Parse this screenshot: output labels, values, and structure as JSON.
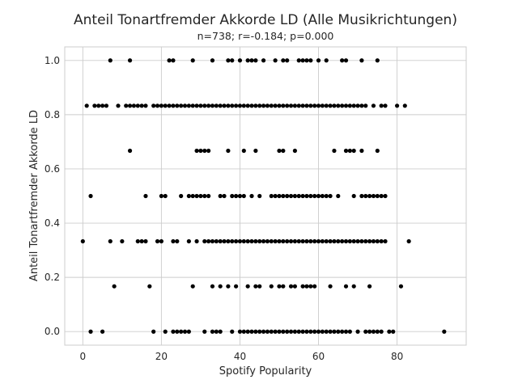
{
  "chart_data": {
    "type": "scatter",
    "title": "Anteil Tonartfremder Akkorde LD (Alle Musikrichtungen)",
    "subtitle": "n=738; r=-0.184; p=0.000",
    "xlabel": "Spotify Popularity",
    "ylabel": "Anteil Tonartfremder Akkorde LD",
    "xlim": [
      -4.6,
      97.6
    ],
    "ylim": [
      -0.05,
      1.05
    ],
    "xticks": [
      0,
      20,
      40,
      60,
      80
    ],
    "yticks": [
      0.0,
      0.2,
      0.4,
      0.6,
      0.8,
      1.0
    ],
    "xtick_labels": [
      "0",
      "20",
      "40",
      "60",
      "80"
    ],
    "ytick_labels": [
      "0.0",
      "0.2",
      "0.4",
      "0.6",
      "0.8",
      "1.0"
    ],
    "grid": true,
    "marker_color": "#000000",
    "series": [
      {
        "points": [
          [
            7,
            1.0
          ],
          [
            12,
            1.0
          ],
          [
            22,
            1.0
          ],
          [
            23,
            1.0
          ],
          [
            28,
            1.0
          ],
          [
            33,
            1.0
          ],
          [
            37,
            1.0
          ],
          [
            38,
            1.0
          ],
          [
            40,
            1.0
          ],
          [
            42,
            1.0
          ],
          [
            43,
            1.0
          ],
          [
            44,
            1.0
          ],
          [
            46,
            1.0
          ],
          [
            49,
            1.0
          ],
          [
            51,
            1.0
          ],
          [
            52,
            1.0
          ],
          [
            55,
            1.0
          ],
          [
            56,
            1.0
          ],
          [
            57,
            1.0
          ],
          [
            58,
            1.0
          ],
          [
            60,
            1.0
          ],
          [
            62,
            1.0
          ],
          [
            66,
            1.0
          ],
          [
            67,
            1.0
          ],
          [
            71,
            1.0
          ],
          [
            75,
            1.0
          ],
          [
            1,
            0.833
          ],
          [
            3,
            0.833
          ],
          [
            4,
            0.833
          ],
          [
            5,
            0.833
          ],
          [
            6,
            0.833
          ],
          [
            9,
            0.833
          ],
          [
            11,
            0.833
          ],
          [
            12,
            0.833
          ],
          [
            13,
            0.833
          ],
          [
            14,
            0.833
          ],
          [
            15,
            0.833
          ],
          [
            16,
            0.833
          ],
          [
            18,
            0.833
          ],
          [
            19,
            0.833
          ],
          [
            20,
            0.833
          ],
          [
            21,
            0.833
          ],
          [
            22,
            0.833
          ],
          [
            23,
            0.833
          ],
          [
            24,
            0.833
          ],
          [
            25,
            0.833
          ],
          [
            26,
            0.833
          ],
          [
            27,
            0.833
          ],
          [
            28,
            0.833
          ],
          [
            29,
            0.833
          ],
          [
            30,
            0.833
          ],
          [
            31,
            0.833
          ],
          [
            32,
            0.833
          ],
          [
            33,
            0.833
          ],
          [
            34,
            0.833
          ],
          [
            35,
            0.833
          ],
          [
            36,
            0.833
          ],
          [
            37,
            0.833
          ],
          [
            38,
            0.833
          ],
          [
            39,
            0.833
          ],
          [
            40,
            0.833
          ],
          [
            41,
            0.833
          ],
          [
            42,
            0.833
          ],
          [
            43,
            0.833
          ],
          [
            44,
            0.833
          ],
          [
            45,
            0.833
          ],
          [
            46,
            0.833
          ],
          [
            47,
            0.833
          ],
          [
            48,
            0.833
          ],
          [
            49,
            0.833
          ],
          [
            50,
            0.833
          ],
          [
            51,
            0.833
          ],
          [
            52,
            0.833
          ],
          [
            53,
            0.833
          ],
          [
            54,
            0.833
          ],
          [
            55,
            0.833
          ],
          [
            56,
            0.833
          ],
          [
            57,
            0.833
          ],
          [
            58,
            0.833
          ],
          [
            59,
            0.833
          ],
          [
            60,
            0.833
          ],
          [
            61,
            0.833
          ],
          [
            62,
            0.833
          ],
          [
            63,
            0.833
          ],
          [
            64,
            0.833
          ],
          [
            65,
            0.833
          ],
          [
            66,
            0.833
          ],
          [
            67,
            0.833
          ],
          [
            68,
            0.833
          ],
          [
            69,
            0.833
          ],
          [
            70,
            0.833
          ],
          [
            71,
            0.833
          ],
          [
            72,
            0.833
          ],
          [
            74,
            0.833
          ],
          [
            76,
            0.833
          ],
          [
            77,
            0.833
          ],
          [
            80,
            0.833
          ],
          [
            82,
            0.833
          ],
          [
            12,
            0.667
          ],
          [
            29,
            0.667
          ],
          [
            30,
            0.667
          ],
          [
            31,
            0.667
          ],
          [
            32,
            0.667
          ],
          [
            37,
            0.667
          ],
          [
            41,
            0.667
          ],
          [
            44,
            0.667
          ],
          [
            50,
            0.667
          ],
          [
            51,
            0.667
          ],
          [
            54,
            0.667
          ],
          [
            64,
            0.667
          ],
          [
            67,
            0.667
          ],
          [
            68,
            0.667
          ],
          [
            69,
            0.667
          ],
          [
            71,
            0.667
          ],
          [
            75,
            0.667
          ],
          [
            2,
            0.5
          ],
          [
            16,
            0.5
          ],
          [
            20,
            0.5
          ],
          [
            21,
            0.5
          ],
          [
            25,
            0.5
          ],
          [
            27,
            0.5
          ],
          [
            28,
            0.5
          ],
          [
            29,
            0.5
          ],
          [
            30,
            0.5
          ],
          [
            31,
            0.5
          ],
          [
            32,
            0.5
          ],
          [
            35,
            0.5
          ],
          [
            36,
            0.5
          ],
          [
            38,
            0.5
          ],
          [
            39,
            0.5
          ],
          [
            40,
            0.5
          ],
          [
            41,
            0.5
          ],
          [
            43,
            0.5
          ],
          [
            45,
            0.5
          ],
          [
            48,
            0.5
          ],
          [
            49,
            0.5
          ],
          [
            50,
            0.5
          ],
          [
            51,
            0.5
          ],
          [
            52,
            0.5
          ],
          [
            53,
            0.5
          ],
          [
            54,
            0.5
          ],
          [
            55,
            0.5
          ],
          [
            56,
            0.5
          ],
          [
            57,
            0.5
          ],
          [
            58,
            0.5
          ],
          [
            59,
            0.5
          ],
          [
            60,
            0.5
          ],
          [
            61,
            0.5
          ],
          [
            62,
            0.5
          ],
          [
            63,
            0.5
          ],
          [
            65,
            0.5
          ],
          [
            69,
            0.5
          ],
          [
            71,
            0.5
          ],
          [
            72,
            0.5
          ],
          [
            73,
            0.5
          ],
          [
            74,
            0.5
          ],
          [
            75,
            0.5
          ],
          [
            76,
            0.5
          ],
          [
            77,
            0.5
          ],
          [
            0,
            0.333
          ],
          [
            7,
            0.333
          ],
          [
            10,
            0.333
          ],
          [
            14,
            0.333
          ],
          [
            15,
            0.333
          ],
          [
            16,
            0.333
          ],
          [
            19,
            0.333
          ],
          [
            20,
            0.333
          ],
          [
            23,
            0.333
          ],
          [
            24,
            0.333
          ],
          [
            27,
            0.333
          ],
          [
            29,
            0.333
          ],
          [
            31,
            0.333
          ],
          [
            32,
            0.333
          ],
          [
            33,
            0.333
          ],
          [
            34,
            0.333
          ],
          [
            35,
            0.333
          ],
          [
            36,
            0.333
          ],
          [
            37,
            0.333
          ],
          [
            38,
            0.333
          ],
          [
            39,
            0.333
          ],
          [
            40,
            0.333
          ],
          [
            41,
            0.333
          ],
          [
            42,
            0.333
          ],
          [
            43,
            0.333
          ],
          [
            44,
            0.333
          ],
          [
            45,
            0.333
          ],
          [
            46,
            0.333
          ],
          [
            47,
            0.333
          ],
          [
            48,
            0.333
          ],
          [
            49,
            0.333
          ],
          [
            50,
            0.333
          ],
          [
            51,
            0.333
          ],
          [
            52,
            0.333
          ],
          [
            53,
            0.333
          ],
          [
            54,
            0.333
          ],
          [
            55,
            0.333
          ],
          [
            56,
            0.333
          ],
          [
            57,
            0.333
          ],
          [
            58,
            0.333
          ],
          [
            59,
            0.333
          ],
          [
            60,
            0.333
          ],
          [
            61,
            0.333
          ],
          [
            62,
            0.333
          ],
          [
            63,
            0.333
          ],
          [
            64,
            0.333
          ],
          [
            65,
            0.333
          ],
          [
            66,
            0.333
          ],
          [
            67,
            0.333
          ],
          [
            68,
            0.333
          ],
          [
            69,
            0.333
          ],
          [
            70,
            0.333
          ],
          [
            71,
            0.333
          ],
          [
            72,
            0.333
          ],
          [
            73,
            0.333
          ],
          [
            74,
            0.333
          ],
          [
            75,
            0.333
          ],
          [
            76,
            0.333
          ],
          [
            77,
            0.333
          ],
          [
            83,
            0.333
          ],
          [
            8,
            0.167
          ],
          [
            17,
            0.167
          ],
          [
            28,
            0.167
          ],
          [
            33,
            0.167
          ],
          [
            35,
            0.167
          ],
          [
            37,
            0.167
          ],
          [
            39,
            0.167
          ],
          [
            42,
            0.167
          ],
          [
            44,
            0.167
          ],
          [
            45,
            0.167
          ],
          [
            48,
            0.167
          ],
          [
            50,
            0.167
          ],
          [
            51,
            0.167
          ],
          [
            53,
            0.167
          ],
          [
            54,
            0.167
          ],
          [
            56,
            0.167
          ],
          [
            57,
            0.167
          ],
          [
            58,
            0.167
          ],
          [
            59,
            0.167
          ],
          [
            63,
            0.167
          ],
          [
            67,
            0.167
          ],
          [
            69,
            0.167
          ],
          [
            73,
            0.167
          ],
          [
            81,
            0.167
          ],
          [
            2,
            0.0
          ],
          [
            5,
            0.0
          ],
          [
            18,
            0.0
          ],
          [
            21,
            0.0
          ],
          [
            23,
            0.0
          ],
          [
            24,
            0.0
          ],
          [
            25,
            0.0
          ],
          [
            26,
            0.0
          ],
          [
            27,
            0.0
          ],
          [
            31,
            0.0
          ],
          [
            33,
            0.0
          ],
          [
            34,
            0.0
          ],
          [
            35,
            0.0
          ],
          [
            38,
            0.0
          ],
          [
            40,
            0.0
          ],
          [
            41,
            0.0
          ],
          [
            42,
            0.0
          ],
          [
            43,
            0.0
          ],
          [
            44,
            0.0
          ],
          [
            45,
            0.0
          ],
          [
            46,
            0.0
          ],
          [
            47,
            0.0
          ],
          [
            48,
            0.0
          ],
          [
            49,
            0.0
          ],
          [
            50,
            0.0
          ],
          [
            51,
            0.0
          ],
          [
            52,
            0.0
          ],
          [
            53,
            0.0
          ],
          [
            54,
            0.0
          ],
          [
            55,
            0.0
          ],
          [
            56,
            0.0
          ],
          [
            57,
            0.0
          ],
          [
            58,
            0.0
          ],
          [
            59,
            0.0
          ],
          [
            60,
            0.0
          ],
          [
            61,
            0.0
          ],
          [
            62,
            0.0
          ],
          [
            63,
            0.0
          ],
          [
            64,
            0.0
          ],
          [
            65,
            0.0
          ],
          [
            66,
            0.0
          ],
          [
            67,
            0.0
          ],
          [
            68,
            0.0
          ],
          [
            70,
            0.0
          ],
          [
            72,
            0.0
          ],
          [
            73,
            0.0
          ],
          [
            74,
            0.0
          ],
          [
            75,
            0.0
          ],
          [
            76,
            0.0
          ],
          [
            78,
            0.0
          ],
          [
            79,
            0.0
          ],
          [
            92,
            0.0
          ]
        ]
      }
    ]
  }
}
